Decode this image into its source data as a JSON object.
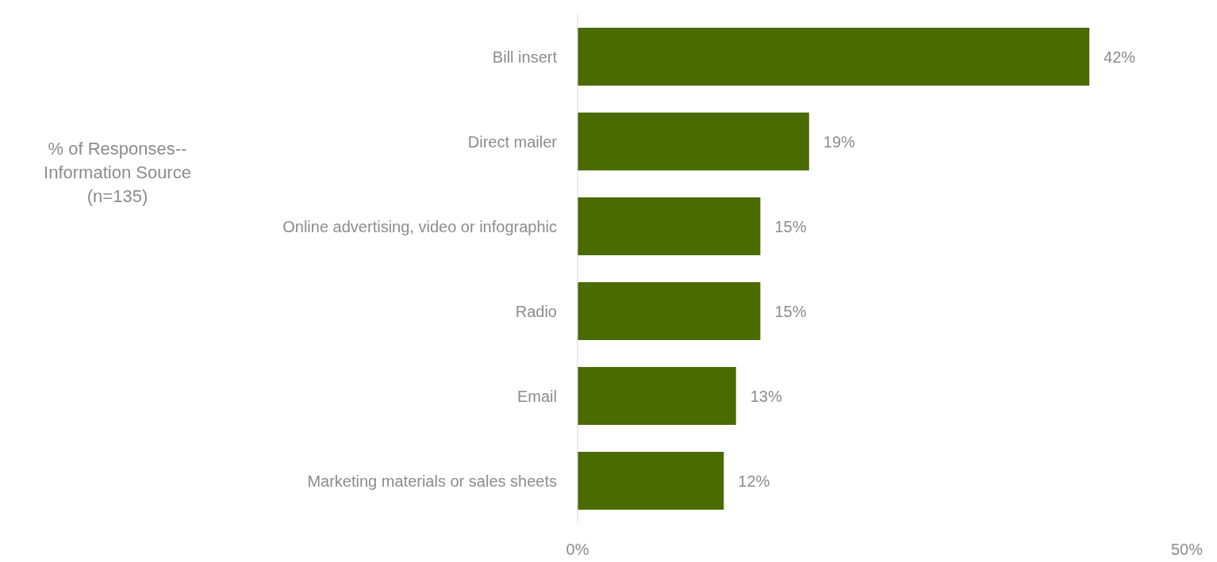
{
  "chart_data": {
    "type": "bar",
    "orientation": "horizontal",
    "annotations": [
      "% of Responses--Information Source (n=135)"
    ],
    "categories": [
      "Bill insert",
      "Direct mailer",
      "Online advertising, video or infographic",
      "Radio",
      "Email",
      "Marketing materials or sales sheets"
    ],
    "values": [
      42,
      19,
      15,
      15,
      13,
      12
    ],
    "color": "#4a6b00",
    "xlim": [
      0,
      50
    ],
    "xticks": [
      {
        "value": 0,
        "label": "0%"
      },
      {
        "value": 50,
        "label": "50%"
      }
    ],
    "value_labels": [
      "42%",
      "19%",
      "15%",
      "15%",
      "13%",
      "12%"
    ],
    "grid": false,
    "legend": false
  }
}
